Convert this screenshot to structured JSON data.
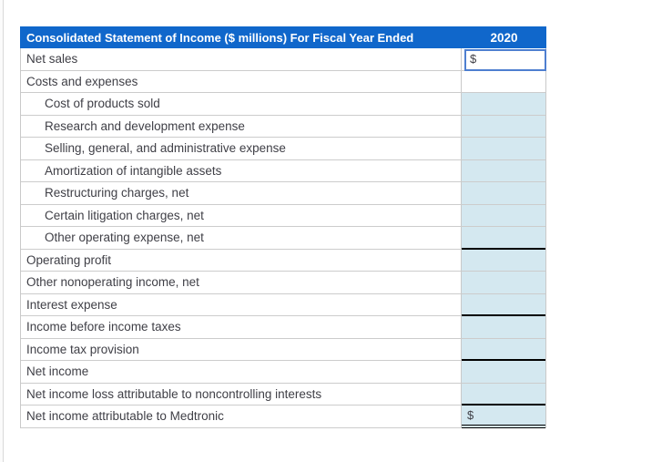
{
  "table": {
    "header": {
      "title": "Consolidated Statement of Income ($ millions) For Fiscal Year Ended",
      "year": "2020"
    },
    "colors": {
      "header_background": "#1067cb",
      "header_text": "#ffffff",
      "input_cell_fill": "#d4e8f0",
      "grid_border": "#c9c9c9",
      "subtotal_rule": "#000000",
      "selection_border": "#4e7fd0",
      "label_text": "#3f3f46"
    },
    "selected_cell": "Net sales 2020",
    "rows": [
      {
        "label": "Net sales",
        "indent": false,
        "value": "$",
        "fill": "white",
        "bottom": "none",
        "selected": true
      },
      {
        "label": "Costs and expenses",
        "indent": false,
        "value": "",
        "fill": "white",
        "bottom": "none",
        "selected": false
      },
      {
        "label": "Cost of products sold",
        "indent": true,
        "value": "",
        "fill": "blue",
        "bottom": "none",
        "selected": false
      },
      {
        "label": "Research and development expense",
        "indent": true,
        "value": "",
        "fill": "blue",
        "bottom": "none",
        "selected": false
      },
      {
        "label": "Selling, general, and administrative expense",
        "indent": true,
        "value": "",
        "fill": "blue",
        "bottom": "none",
        "selected": false
      },
      {
        "label": "Amortization of intangible assets",
        "indent": true,
        "value": "",
        "fill": "blue",
        "bottom": "none",
        "selected": false
      },
      {
        "label": "Restructuring charges, net",
        "indent": true,
        "value": "",
        "fill": "blue",
        "bottom": "none",
        "selected": false
      },
      {
        "label": "Certain litigation charges, net",
        "indent": true,
        "value": "",
        "fill": "blue",
        "bottom": "none",
        "selected": false
      },
      {
        "label": "Other operating expense, net",
        "indent": true,
        "value": "",
        "fill": "blue",
        "bottom": "single",
        "selected": false
      },
      {
        "label": "Operating profit",
        "indent": false,
        "value": "",
        "fill": "blue",
        "bottom": "none",
        "selected": false
      },
      {
        "label": "Other nonoperating income, net",
        "indent": false,
        "value": "",
        "fill": "blue",
        "bottom": "none",
        "selected": false
      },
      {
        "label": "Interest expense",
        "indent": false,
        "value": "",
        "fill": "blue",
        "bottom": "single",
        "selected": false
      },
      {
        "label": "Income before income taxes",
        "indent": false,
        "value": "",
        "fill": "blue",
        "bottom": "none",
        "selected": false
      },
      {
        "label": "Income tax provision",
        "indent": false,
        "value": "",
        "fill": "blue",
        "bottom": "single",
        "selected": false
      },
      {
        "label": "Net income",
        "indent": false,
        "value": "",
        "fill": "blue",
        "bottom": "none",
        "selected": false
      },
      {
        "label": "Net income loss attributable to noncontrolling interests",
        "indent": false,
        "value": "",
        "fill": "blue",
        "bottom": "single",
        "selected": false
      },
      {
        "label": "Net income attributable to Medtronic",
        "indent": false,
        "value": "$",
        "fill": "blue",
        "bottom": "double",
        "selected": false
      }
    ]
  }
}
